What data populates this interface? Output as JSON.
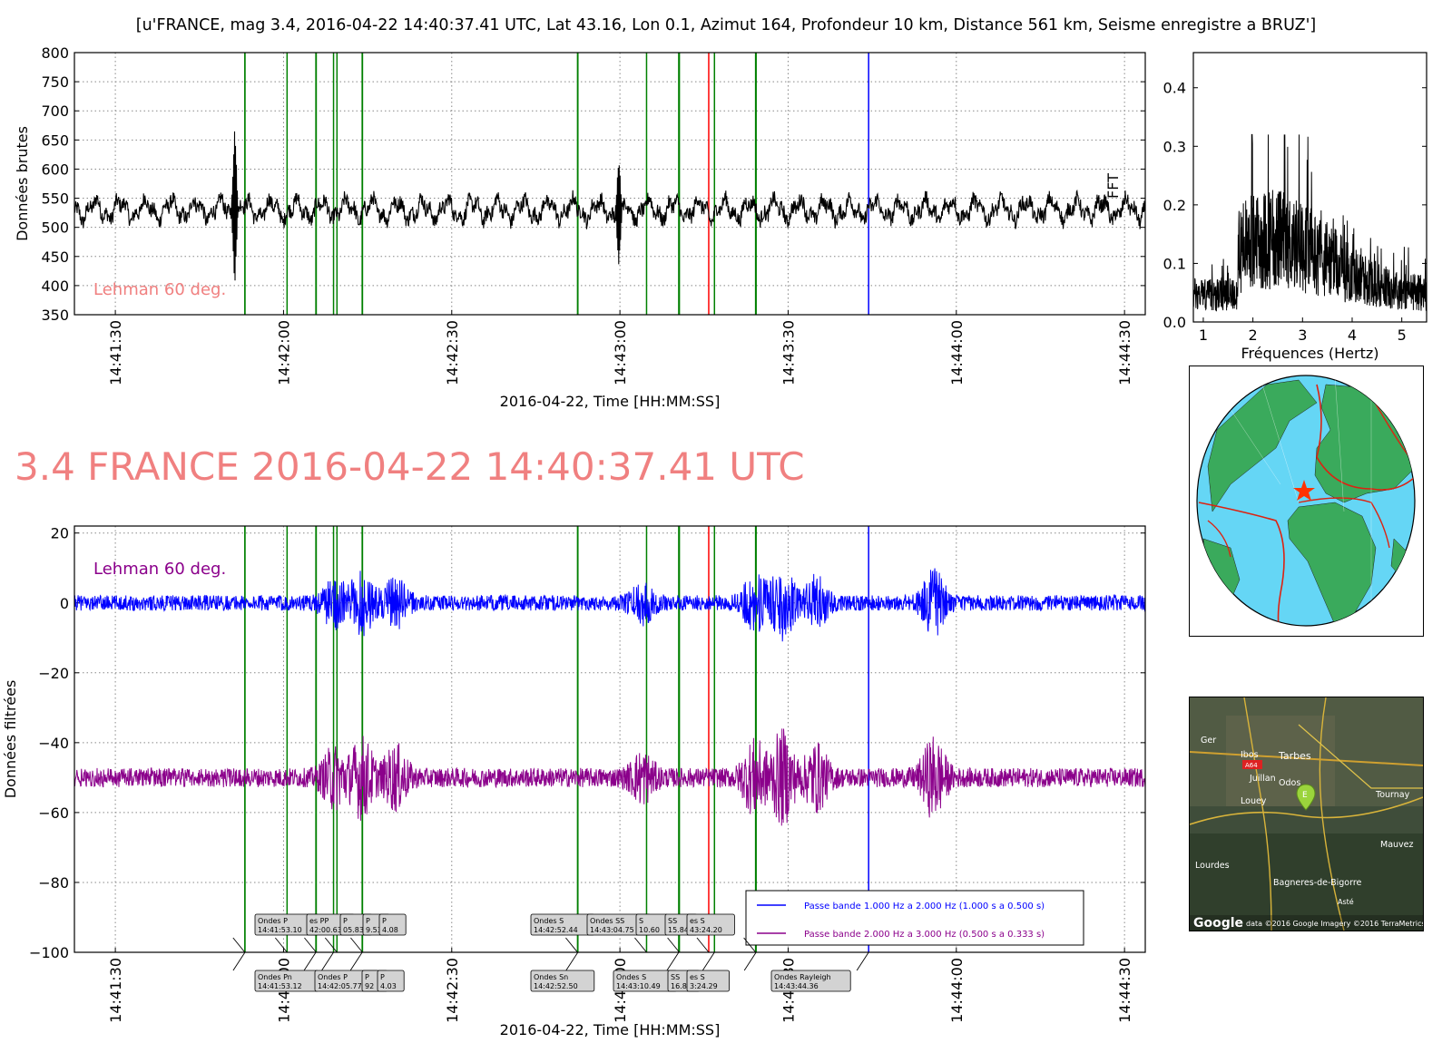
{
  "header": {
    "title": "[u'FRANCE, mag 3.4, 2016-04-22 14:40:37.41 UTC, Lat 43.16, Lon 0.1, Azimut 164, Profondeur 10 km, Distance 561 km, Seisme enregistre a BRUZ']",
    "big_title": "3.4 FRANCE 2016-04-22 14:40:37.41 UTC"
  },
  "colors": {
    "raw_trace": "#000000",
    "filtered_1": "#0000ff",
    "filtered_2": "#8b008b",
    "green_marker": "#008000",
    "red_marker": "#ff0000",
    "blue_marker": "#0000ff",
    "annotation": "#f08080",
    "big_title": "#f08080"
  },
  "chart_data": [
    {
      "type": "line",
      "name": "raw",
      "ylabel": "Données brutes",
      "xlabel": "2016-04-22, Time [HH:MM:SS]",
      "xlim_seconds": [
        82.7,
        273.7
      ],
      "ylim": [
        350,
        800
      ],
      "yticks": [
        350,
        400,
        450,
        500,
        550,
        600,
        650,
        700,
        750,
        800
      ],
      "xtick_labels": [
        {
          "t": 90,
          "label": "14:41:30"
        },
        {
          "t": 120,
          "label": "14:42:00"
        },
        {
          "t": 150,
          "label": "14:42:30"
        },
        {
          "t": 180,
          "label": "14:43:00"
        },
        {
          "t": 210,
          "label": "14:43:30"
        },
        {
          "t": 240,
          "label": "14:44:00"
        },
        {
          "t": 270,
          "label": "14:44:30"
        }
      ],
      "baseline": 530,
      "annotation": "Lehman 60 deg.",
      "grid": true,
      "spikes": [
        {
          "t": 111.3,
          "max": 675,
          "min": 400
        },
        {
          "t": 179.8,
          "max": 620,
          "min": 433
        }
      ]
    },
    {
      "type": "line",
      "name": "fft",
      "ylabel": "FFT",
      "xlabel": "Fréquences (Hertz)",
      "xlim": [
        0.8,
        5.5
      ],
      "ylim": [
        0,
        0.46
      ],
      "yticks": [
        0.0,
        0.1,
        0.2,
        0.3,
        0.4
      ],
      "xticks": [
        1,
        2,
        3,
        4,
        5
      ],
      "peak": {
        "x": 1.98,
        "y": 0.32
      }
    },
    {
      "type": "line",
      "name": "filtered",
      "ylabel": "Données filtrées",
      "xlabel": "2016-04-22, Time [HH:MM:SS]",
      "xlim_seconds": [
        82.7,
        273.7
      ],
      "ylim": [
        -100,
        22
      ],
      "yticks": [
        -100,
        -80,
        -60,
        -40,
        -20,
        0,
        20
      ],
      "xtick_labels": [
        {
          "t": 90,
          "label": "14:41:30"
        },
        {
          "t": 120,
          "label": "14:42:00"
        },
        {
          "t": 150,
          "label": "14:42:30"
        },
        {
          "t": 180,
          "label": "14:43:00"
        },
        {
          "t": 210,
          "label": "14:43:30"
        },
        {
          "t": 240,
          "label": "14:44:00"
        },
        {
          "t": 270,
          "label": "14:44:30"
        }
      ],
      "annotation": "Lehman 60 deg.",
      "grid": true,
      "series": [
        {
          "name": "Passe bande 1.000 Hz a 2.000 Hz (1.000 s a 0.500 s)",
          "offset": 0,
          "color": "#0000ff"
        },
        {
          "name": "Passe bande 2.000 Hz a 3.000 Hz (0.500 s a 0.333 s)",
          "offset": -50,
          "color": "#8b008b"
        }
      ],
      "markers": [
        {
          "t": 113.1,
          "color": "green"
        },
        {
          "t": 113.12,
          "color": "green"
        },
        {
          "t": 120.63,
          "color": "green"
        },
        {
          "t": 125.77,
          "color": "green"
        },
        {
          "t": 125.83,
          "color": "green"
        },
        {
          "t": 128.92,
          "color": "green"
        },
        {
          "t": 129.53,
          "color": "green"
        },
        {
          "t": 134.03,
          "color": "green"
        },
        {
          "t": 134.08,
          "color": "green"
        },
        {
          "t": 172.44,
          "color": "green"
        },
        {
          "t": 172.5,
          "color": "green"
        },
        {
          "t": 184.75,
          "color": "green"
        },
        {
          "t": 190.49,
          "color": "green"
        },
        {
          "t": 190.6,
          "color": "green"
        },
        {
          "t": 195.84,
          "color": "red"
        },
        {
          "t": 196.86,
          "color": "green"
        },
        {
          "t": 204.2,
          "color": "green"
        },
        {
          "t": 204.29,
          "color": "green"
        },
        {
          "t": 224.36,
          "color": "blue"
        }
      ],
      "labels_top": [
        {
          "title": "Ondes P",
          "time": "14:41:53.10"
        },
        {
          "title": "es PP",
          "time": "42:00.63"
        },
        {
          "title": "P",
          "time": "05.83"
        },
        {
          "title": "P",
          "time": "9.53"
        },
        {
          "title": "P",
          "time": "4.08"
        },
        {
          "title": "Ondes S",
          "time": "14:42:52.44"
        },
        {
          "title": "Ondes SS",
          "time": "14:43:04.75"
        },
        {
          "title": "S",
          "time": "10.60"
        },
        {
          "title": "SS",
          "time": "15.84"
        },
        {
          "title": "es S",
          "time": "43:24.20"
        }
      ],
      "labels_bottom": [
        {
          "title": "Ondes Pn",
          "time": "14:41:53.12"
        },
        {
          "title": "Ondes P",
          "time": "14:42:05.77"
        },
        {
          "title": "P",
          "time": "92"
        },
        {
          "title": "P",
          "time": "4.03"
        },
        {
          "title": "Ondes Sn",
          "time": "14:42:52.50"
        },
        {
          "title": "Ondes S",
          "time": "14:43:10.49"
        },
        {
          "title": "SS",
          "time": "16.86"
        },
        {
          "title": "es S",
          "time": "3:24.29"
        },
        {
          "title": "Ondes Rayleigh",
          "time": "14:43:44.36"
        }
      ]
    }
  ],
  "satellite_map": {
    "places": [
      "Ger",
      "Ibos",
      "A64",
      "Tarbes",
      "Juillan",
      "Odos",
      "Louey",
      "Tournay",
      "Lourdes",
      "Mauvez",
      "Bagneres-de-Bigorre",
      "Asté"
    ],
    "marker_letter": "E",
    "logo": "Google",
    "copyright": "data ©2016 Google  Imagery ©2016 TerraMetrics"
  }
}
